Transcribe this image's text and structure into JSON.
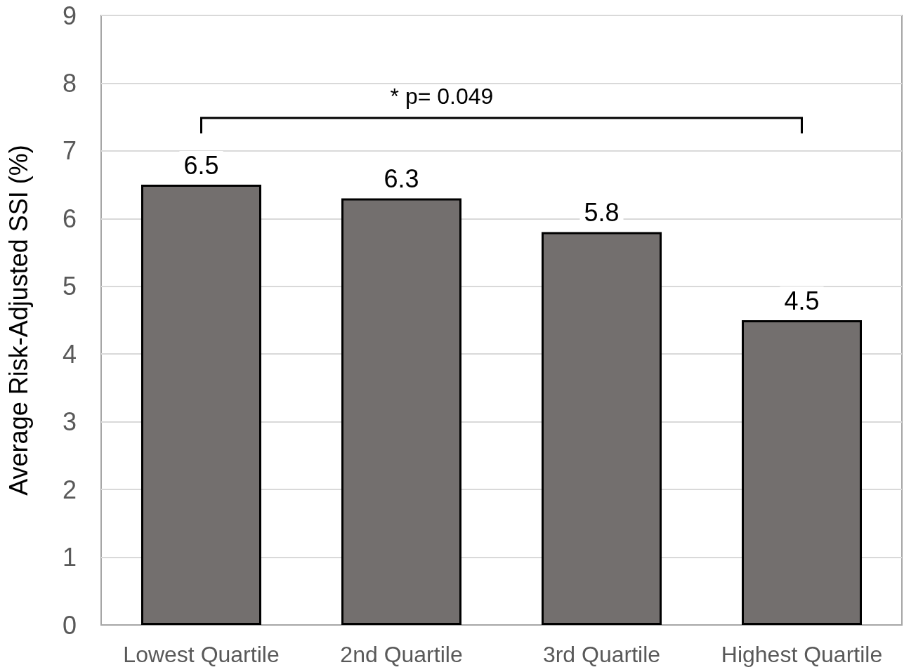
{
  "chart_data": {
    "type": "bar",
    "ylabel": "Average Risk-Adjusted SSI (%)",
    "categories": [
      "Lowest Quartile",
      "2nd Quartile",
      "3rd Quartile",
      "Highest Quartile"
    ],
    "values": [
      6.5,
      6.3,
      5.8,
      4.5
    ],
    "color": "#736f6e",
    "ylim": [
      0,
      9
    ],
    "yticks": [
      0,
      1,
      2,
      3,
      4,
      5,
      6,
      7,
      8,
      9
    ],
    "grid": "y",
    "data_labels": true,
    "annotations": [
      "* p= 0.049"
    ]
  }
}
